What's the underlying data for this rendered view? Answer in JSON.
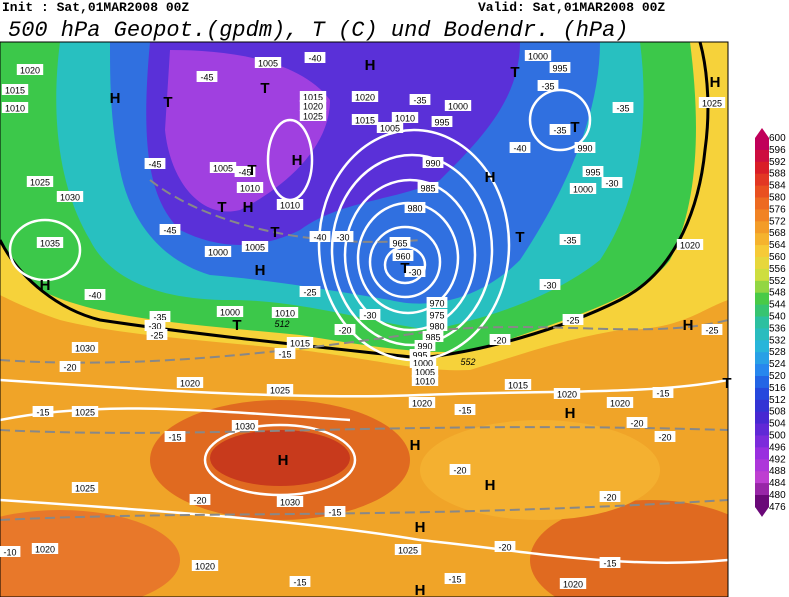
{
  "header": {
    "init": "Init : Sat,01MAR2008 00Z",
    "valid": "Valid: Sat,01MAR2008 00Z",
    "title": "500 hPa Geopot.(gpdm), T (C) und Bodendr. (hPa)"
  },
  "colorbar": {
    "labels": [
      "600",
      "596",
      "592",
      "588",
      "584",
      "580",
      "576",
      "572",
      "568",
      "564",
      "560",
      "556",
      "552",
      "548",
      "544",
      "540",
      "536",
      "532",
      "528",
      "524",
      "520",
      "516",
      "512",
      "508",
      "504",
      "500",
      "496",
      "492",
      "488",
      "484",
      "480",
      "476"
    ]
  },
  "map": {
    "isobars": [
      "1020",
      "1015",
      "1010",
      "1025",
      "1030",
      "1035",
      "1005",
      "1015",
      "1020",
      "1025",
      "1020",
      "1015",
      "1010",
      "1005",
      "1000",
      "995",
      "990",
      "985",
      "980",
      "965",
      "960",
      "970",
      "975",
      "980",
      "985",
      "990",
      "995",
      "1000",
      "1005",
      "1010",
      "1005",
      "1010",
      "1010",
      "1000",
      "1005",
      "1000",
      "1010",
      "1015",
      "1030",
      "1020",
      "1025",
      "1025",
      "1020",
      "1015",
      "1020",
      "1020",
      "1030",
      "1030",
      "1025",
      "1020",
      "1020",
      "1025",
      "1020",
      "995",
      "1000",
      "990",
      "995",
      "1000",
      "1020",
      "1025"
    ],
    "temperatures": [
      "-45",
      "-45",
      "-45",
      "-45",
      "-40",
      "-40",
      "-35",
      "-30",
      "-30",
      "-40",
      "-35",
      "-30",
      "-25",
      "-25",
      "-20",
      "-30",
      "-35",
      "-35",
      "-35",
      "-40",
      "-35",
      "-30",
      "-25",
      "-20",
      "-20",
      "-15",
      "-15",
      "-15",
      "-15",
      "-20",
      "-20",
      "-20",
      "-20",
      "-15",
      "-20",
      "-20",
      "-15",
      "-10",
      "-15",
      "-15",
      "-25",
      "-30",
      "-15"
    ],
    "centers": [
      "H",
      "T",
      "H",
      "T",
      "H",
      "T",
      "T",
      "H",
      "T",
      "H",
      "T",
      "T",
      "H",
      "H",
      "T",
      "T",
      "T",
      "H",
      "H",
      "H",
      "H",
      "H",
      "H",
      "H",
      "T",
      "H"
    ],
    "heights": [
      "512",
      "552"
    ]
  }
}
